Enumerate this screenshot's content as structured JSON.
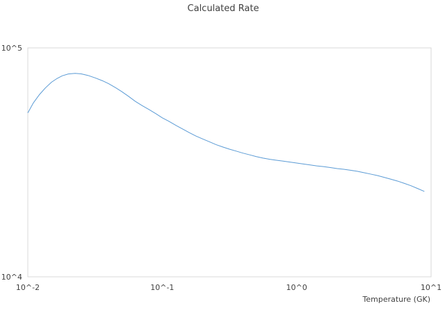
{
  "chart_data": {
    "type": "line",
    "title": "Calculated Rate",
    "xlabel": "Temperature (GK)",
    "ylabel": "",
    "xscale": "log",
    "yscale": "log",
    "xlim": [
      0.01,
      10
    ],
    "ylim": [
      10000,
      100000
    ],
    "x_tick_labels": [
      "10^-2",
      "10^-1",
      "10^0",
      "10^1"
    ],
    "y_tick_labels": [
      "10^4",
      "10^5"
    ],
    "grid": false,
    "legend": "none",
    "series": [
      {
        "color": "#5b9bd5",
        "x": [
          0.01,
          0.011,
          0.0122,
          0.0135,
          0.015,
          0.0165,
          0.018,
          0.02,
          0.0225,
          0.025,
          0.028,
          0.032,
          0.036,
          0.04,
          0.045,
          0.05,
          0.056,
          0.063,
          0.071,
          0.08,
          0.09,
          0.1,
          0.112,
          0.126,
          0.141,
          0.158,
          0.178,
          0.2,
          0.224,
          0.251,
          0.282,
          0.316,
          0.355,
          0.398,
          0.447,
          0.501,
          0.562,
          0.631,
          0.708,
          0.794,
          0.891,
          1.0,
          1.12,
          1.26,
          1.41,
          1.58,
          1.78,
          2.0,
          2.24,
          2.51,
          2.82,
          3.16,
          3.55,
          3.98,
          4.47,
          5.01,
          5.62,
          6.31,
          7.08,
          7.94,
          8.91
        ],
        "y": [
          52000,
          57500,
          62500,
          66800,
          70800,
          73500,
          75500,
          76900,
          77400,
          77000,
          75800,
          73800,
          71800,
          69700,
          67000,
          64400,
          61500,
          58400,
          55900,
          53700,
          51500,
          49500,
          47800,
          45900,
          44300,
          42700,
          41200,
          40000,
          38900,
          37800,
          36900,
          36100,
          35400,
          34700,
          34100,
          33500,
          33000,
          32600,
          32300,
          32000,
          31700,
          31400,
          31100,
          30800,
          30500,
          30300,
          30000,
          29700,
          29500,
          29200,
          28900,
          28500,
          28100,
          27700,
          27200,
          26700,
          26200,
          25600,
          25000,
          24300,
          23600
        ]
      }
    ]
  }
}
